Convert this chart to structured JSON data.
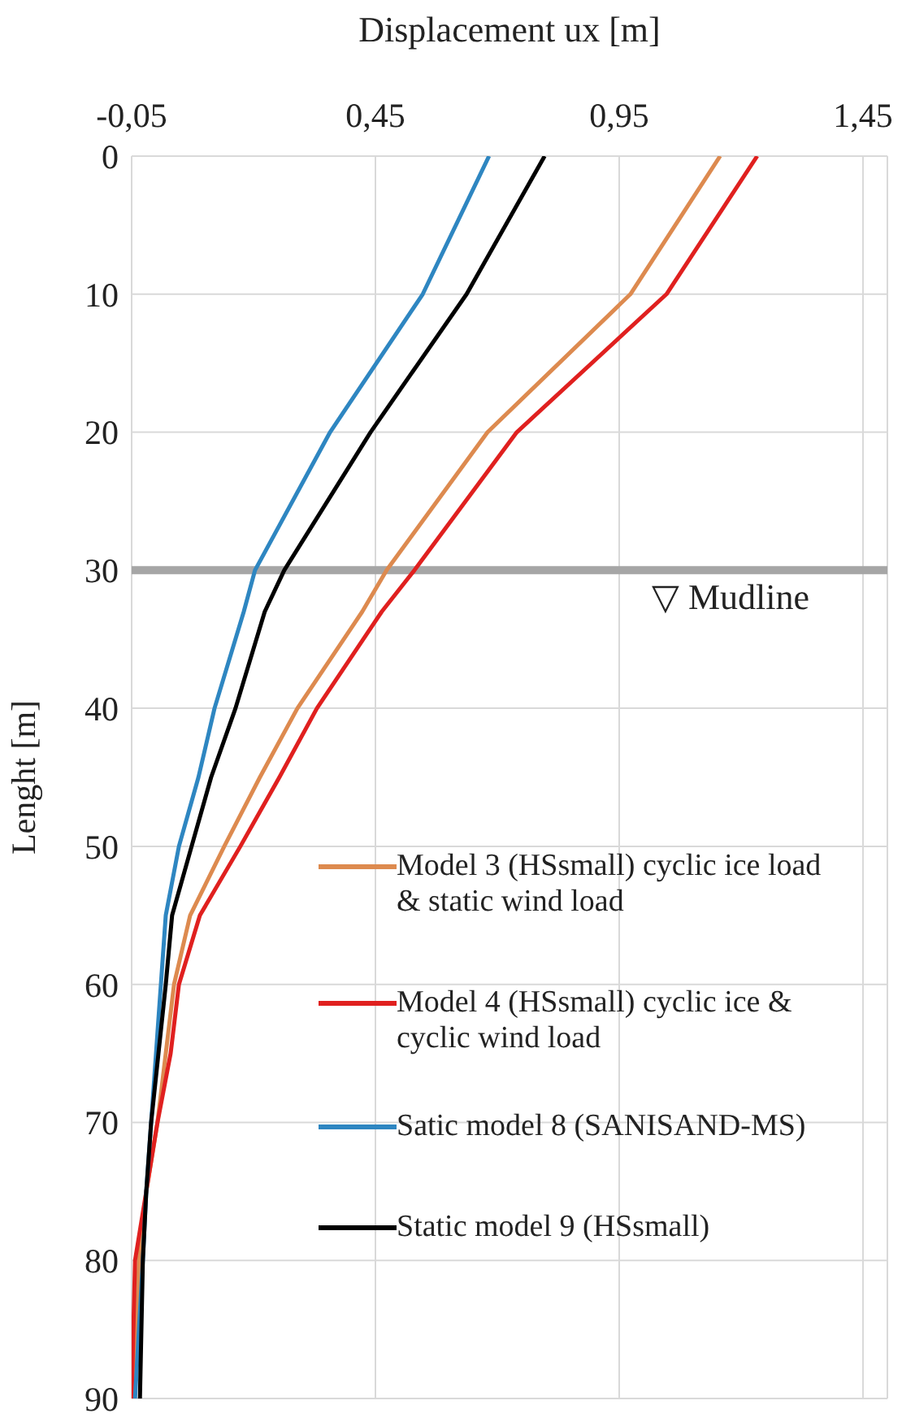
{
  "chart_data": {
    "type": "line",
    "xlabel": "Displacement ux [m]",
    "ylabel": "Lenght [m]",
    "xlim": [
      -0.05,
      1.5
    ],
    "xticks": [
      {
        "value": -0.05,
        "label": "-0,05"
      },
      {
        "value": 0.45,
        "label": "0,45"
      },
      {
        "value": 0.95,
        "label": "0,95"
      },
      {
        "value": 1.45,
        "label": "1,45"
      }
    ],
    "ylim": [
      90,
      0
    ],
    "yticks": [
      0,
      10,
      20,
      30,
      40,
      50,
      60,
      70,
      80,
      90
    ],
    "grid": true,
    "legend": "bottom right",
    "marker": "none",
    "line_style": "solid",
    "ref_lines": [
      {
        "axis": "y",
        "value": 30,
        "label": "▽ Mudline",
        "color": "#a6a6a6"
      }
    ],
    "series": [
      {
        "name": "Model 3 (HSsmall) cyclic ice load & static wind load",
        "color": "#dd8a4f",
        "x": [
          1.157,
          0.973,
          0.68,
          0.473,
          0.423,
          0.29,
          0.213,
          0.14,
          0.07,
          0.037,
          0.02,
          0.003,
          -0.02,
          -0.035,
          -0.045
        ],
        "values": [
          0,
          10,
          20,
          30,
          33,
          40,
          45,
          50,
          55,
          60,
          65,
          70,
          75,
          80,
          90
        ]
      },
      {
        "name": "Model 4 (HSsmall) cyclic ice & cyclic wind load",
        "color": "#e0201f",
        "x": [
          1.233,
          1.047,
          0.74,
          0.53,
          0.463,
          0.33,
          0.253,
          0.173,
          0.09,
          0.047,
          0.03,
          0.003,
          -0.02,
          -0.043,
          -0.05
        ],
        "values": [
          0,
          10,
          20,
          30,
          33,
          40,
          45,
          50,
          55,
          60,
          65,
          70,
          75,
          80,
          90
        ]
      },
      {
        "name": "Satic model 8 (SANISAND-MS)",
        "color": "#2e86c1",
        "x": [
          0.683,
          0.547,
          0.357,
          0.203,
          0.18,
          0.12,
          0.087,
          0.047,
          0.02,
          0.01,
          0.0,
          -0.01,
          -0.02,
          -0.027,
          -0.043
        ],
        "values": [
          0,
          10,
          20,
          30,
          33,
          40,
          45,
          50,
          55,
          60,
          65,
          70,
          75,
          80,
          90
        ]
      },
      {
        "name": "Static model 9 (HSsmall)",
        "color": "#000000",
        "x": [
          0.797,
          0.637,
          0.44,
          0.263,
          0.223,
          0.163,
          0.113,
          0.073,
          0.033,
          0.02,
          0.005,
          -0.01,
          -0.02,
          -0.027,
          -0.033
        ],
        "values": [
          0,
          10,
          20,
          30,
          33,
          40,
          45,
          50,
          55,
          60,
          65,
          70,
          75,
          80,
          90
        ]
      }
    ]
  }
}
